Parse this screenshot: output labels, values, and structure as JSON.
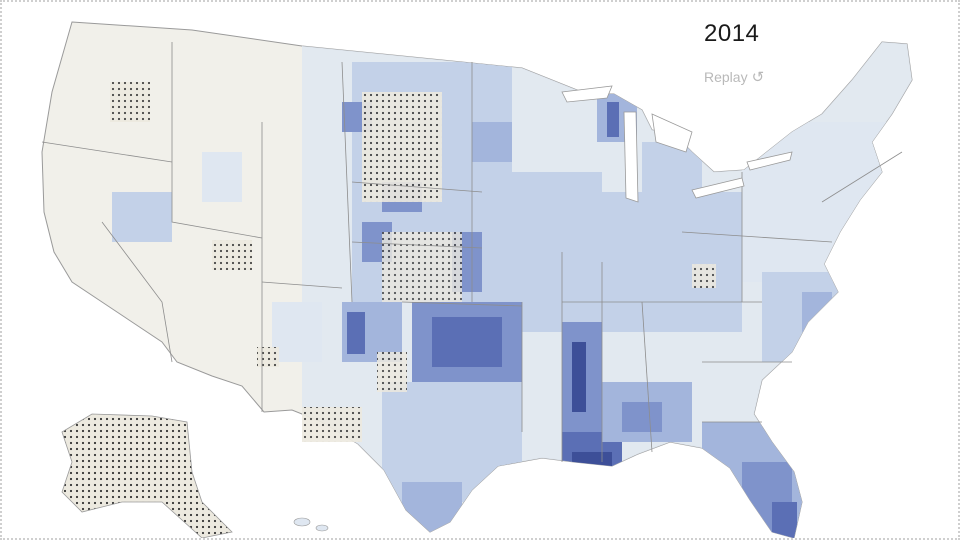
{
  "map": {
    "year_label": "2014",
    "replay_label": "Replay",
    "replay_icon": "replay-icon",
    "colors": {
      "land": "#f1f0ea",
      "border": "#8d8d8d",
      "shade_1": "#dfe7f1",
      "shade_2": "#c3d1e8",
      "shade_3": "#a3b5dc",
      "shade_4": "#7f93cb",
      "shade_5": "#5b6fb5",
      "shade_6": "#3d4f98",
      "no_data_dots": "#333333"
    }
  }
}
